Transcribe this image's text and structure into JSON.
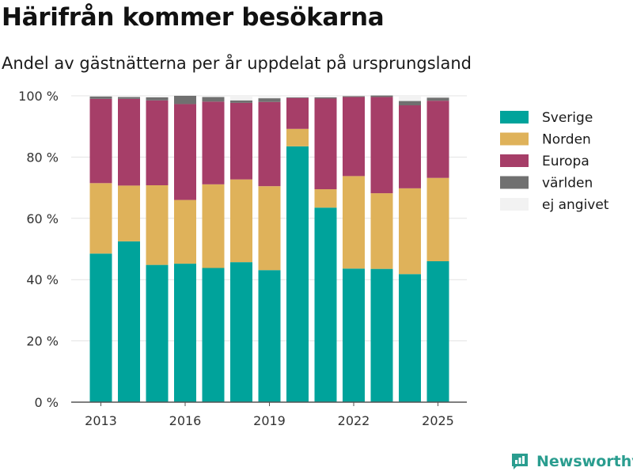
{
  "header": {
    "title": "Härifrån kommer besökarna",
    "subtitle": "Andel av gästnätterna per år uppdelat på ursprungsland"
  },
  "brand": {
    "name": "Newsworthy",
    "color": "#2a9d8f",
    "icon": "newsworthy-logo-icon"
  },
  "chart_data": {
    "type": "bar",
    "stacked": true,
    "x": [
      2013,
      2014,
      2015,
      2016,
      2017,
      2018,
      2019,
      2020,
      2021,
      2022,
      2023,
      2024,
      2025
    ],
    "x_ticks": [
      "2013",
      "2016",
      "2019",
      "2022",
      "2025"
    ],
    "y_ticks": [
      "0 %",
      "20 %",
      "40 %",
      "60 %",
      "80 %",
      "100 %"
    ],
    "ylim": [
      0,
      100
    ],
    "grid": true,
    "legend_position": "right",
    "series": [
      {
        "name": "Sverige",
        "color": "#00a39b",
        "values": [
          48.5,
          52.5,
          44.8,
          45.2,
          43.8,
          45.7,
          43.1,
          83.5,
          63.5,
          43.6,
          43.5,
          41.8,
          46.0
        ]
      },
      {
        "name": "Norden",
        "color": "#dfb25a",
        "values": [
          23.0,
          18.2,
          26.0,
          20.8,
          27.3,
          27.0,
          27.4,
          5.7,
          6.0,
          30.2,
          24.7,
          28.0,
          27.2
        ]
      },
      {
        "name": "Europa",
        "color": "#a63e68",
        "values": [
          27.5,
          28.3,
          27.7,
          31.3,
          27.0,
          25.0,
          27.5,
          10.1,
          29.6,
          25.8,
          31.4,
          27.1,
          25.2
        ]
      },
      {
        "name": "världen",
        "color": "#707070",
        "values": [
          0.8,
          0.6,
          1.0,
          2.7,
          1.5,
          0.8,
          1.2,
          0.2,
          0.4,
          0.3,
          0.5,
          1.4,
          1.0
        ]
      },
      {
        "name": "ej angivet",
        "color": "#f2f2f2",
        "values": [
          0.2,
          0.4,
          0.5,
          0.0,
          0.4,
          1.5,
          0.8,
          0.5,
          0.5,
          0.1,
          0.0,
          1.7,
          0.6
        ]
      }
    ]
  }
}
